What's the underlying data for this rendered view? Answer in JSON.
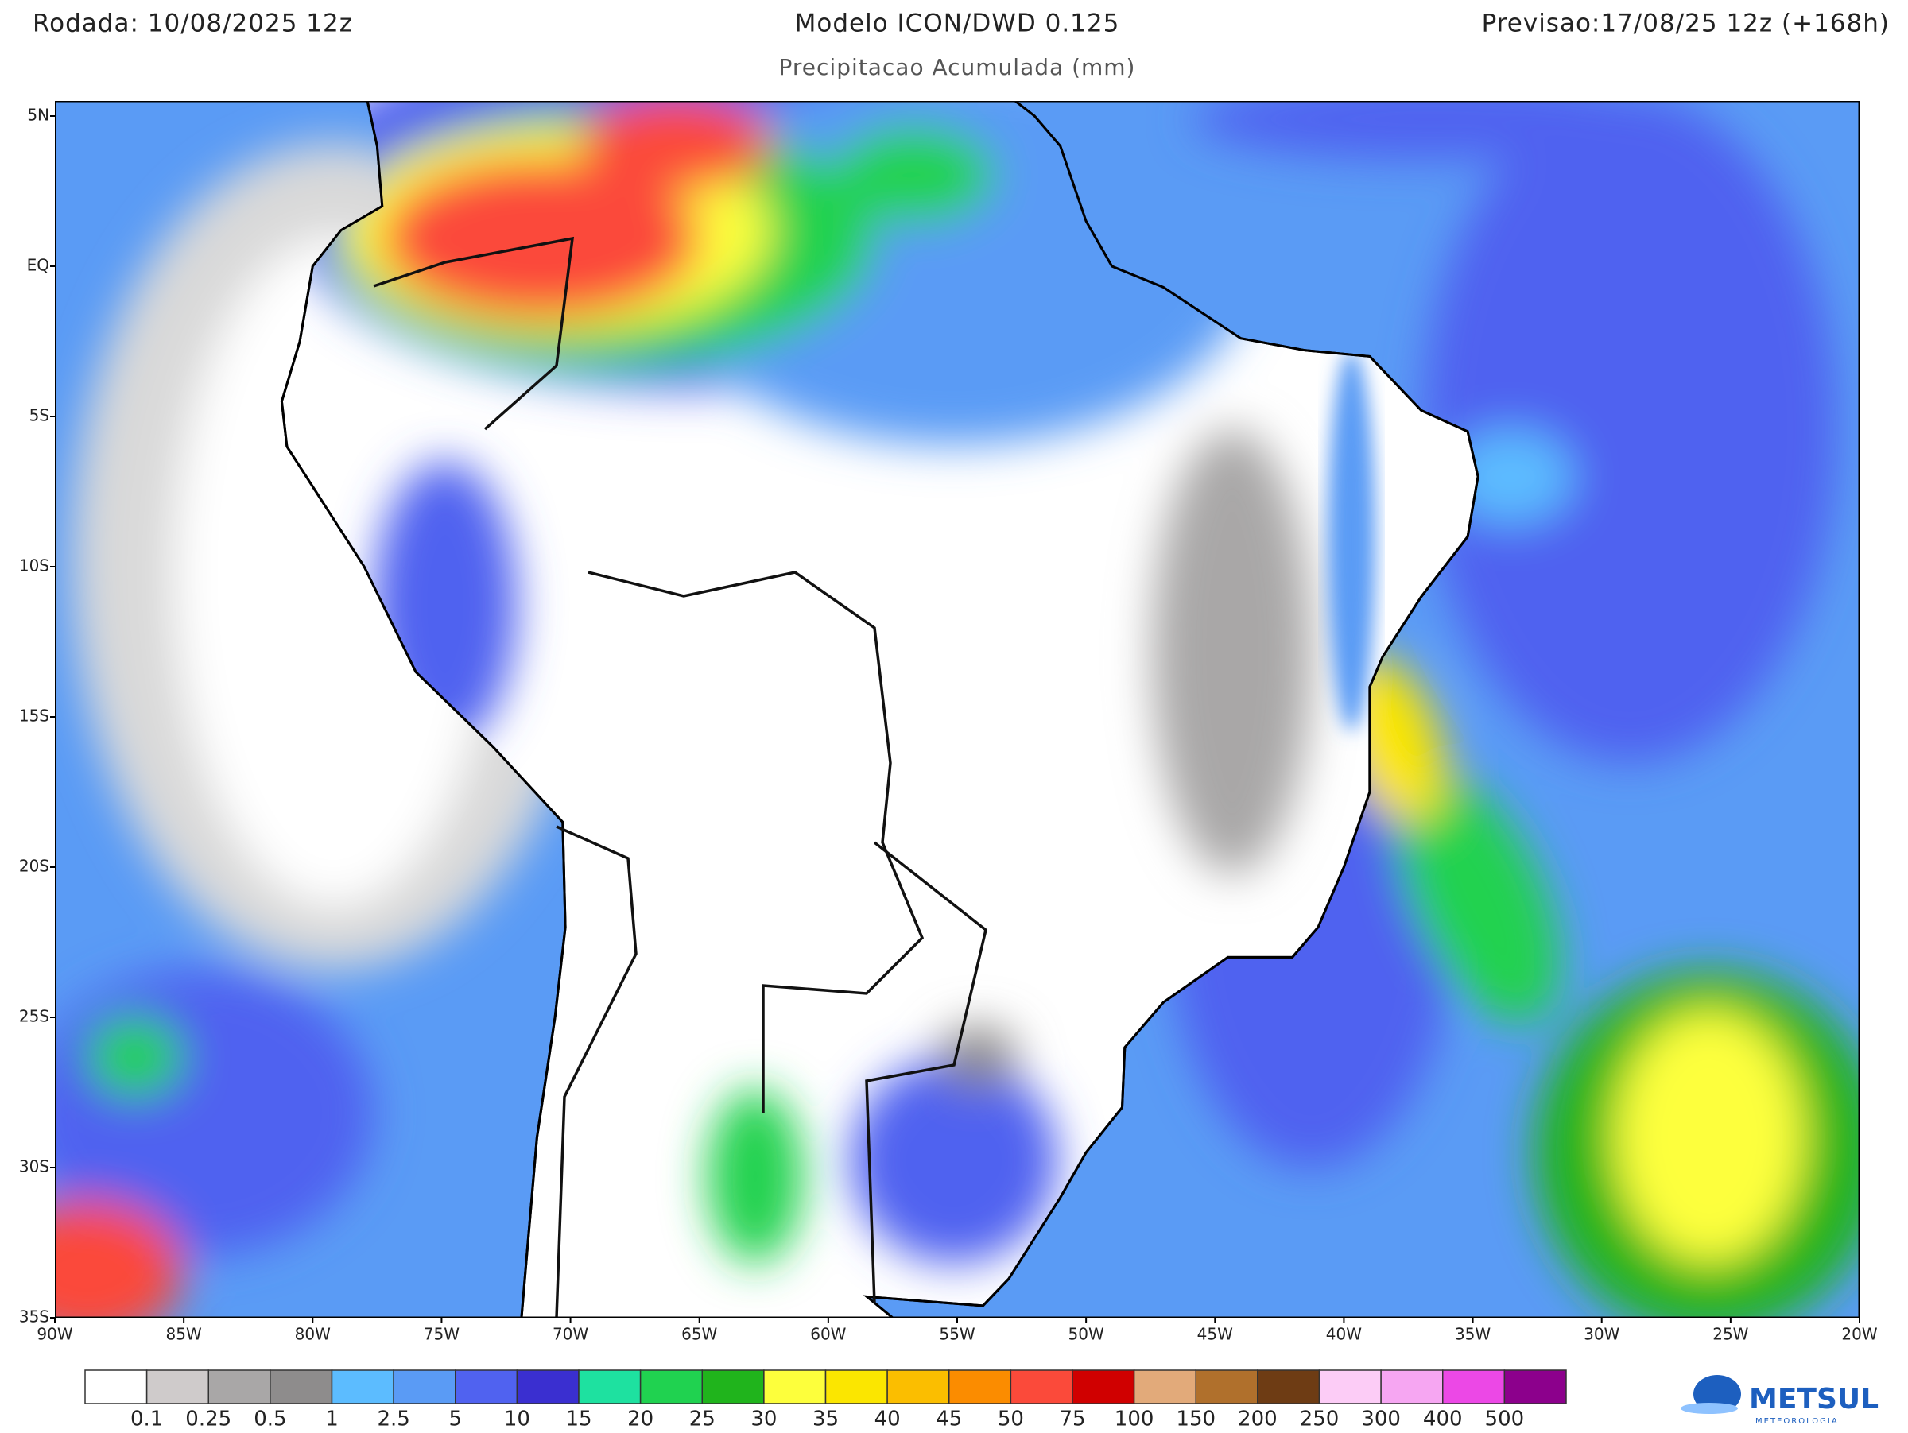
{
  "header": {
    "left": "Rodada: 10/08/2025 12z",
    "title": "Modelo ICON/DWD 0.125",
    "subtitle": "Precipitacao Acumulada (mm)",
    "right": "Previsao:17/08/25 12z (+168h)"
  },
  "map": {
    "lat_labels": [
      "5N",
      "EQ",
      "5S",
      "10S",
      "15S",
      "20S",
      "25S",
      "30S",
      "35S"
    ],
    "lon_labels": [
      "90W",
      "85W",
      "80W",
      "75W",
      "70W",
      "65W",
      "60W",
      "55W",
      "50W",
      "45W",
      "40W",
      "35W",
      "30W",
      "25W",
      "20W"
    ]
  },
  "colorbar": {
    "bounds": [
      0.1,
      0.25,
      0.5,
      1,
      2.5,
      5,
      10,
      15,
      20,
      25,
      30,
      35,
      40,
      45,
      50,
      75,
      100,
      150,
      200,
      250,
      300,
      400,
      500
    ],
    "colors": [
      "#ffffff",
      "#cfcbcb",
      "#a9a7a7",
      "#8e8c8c",
      "#5cbcff",
      "#5a9bf5",
      "#5062f0",
      "#3a2fd0",
      "#1ee1a0",
      "#20d250",
      "#20b41c",
      "#fdff3c",
      "#fbe600",
      "#fbbe00",
      "#fb8c00",
      "#fb4a3a",
      "#d00000",
      "#e2aa7a",
      "#b0702c",
      "#6e3c14",
      "#fcccf6",
      "#f6a6f2",
      "#ec48e6",
      "#8c008c"
    ]
  },
  "logo": {
    "name": "METSUL",
    "tagline": "METEOROLOGIA"
  }
}
